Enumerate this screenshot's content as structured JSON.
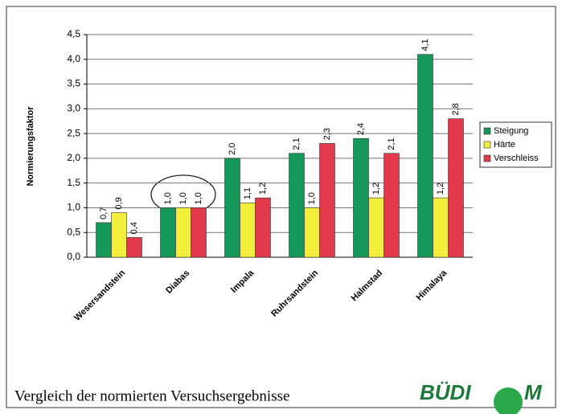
{
  "chart_data": {
    "type": "bar",
    "footer": "Vergleich der normierten Versuchsergebnisse",
    "logo": [
      "BÜDI",
      "M"
    ],
    "y_label": "Normierungsfaktor",
    "categories": [
      "Wesersandstein",
      "Diabas",
      "Impala",
      "Ruhrsandstein",
      "Halmstad",
      "Himalaya"
    ],
    "series": [
      {
        "name": "Steigung",
        "color": "#16985a",
        "values": [
          0.7,
          1.0,
          2.0,
          2.1,
          2.4,
          4.1
        ],
        "value_labels": [
          "0,7",
          "1,0",
          "2,0",
          "2,1",
          "2,4",
          "4,1"
        ]
      },
      {
        "name": "Härte",
        "color": "#f2ee3c",
        "values": [
          0.9,
          1.0,
          1.1,
          1.0,
          1.2,
          1.2
        ],
        "value_labels": [
          "0,9",
          "1,0",
          "1,1",
          "1,0",
          "1,2",
          "1,2"
        ]
      },
      {
        "name": "Verschleiss",
        "color": "#e23a4a",
        "values": [
          0.4,
          1.0,
          1.2,
          2.3,
          2.1,
          2.8
        ],
        "value_labels": [
          "0,4",
          "1,0",
          "1,2",
          "2,3",
          "2,1",
          "2,8"
        ]
      }
    ],
    "ylim": [
      0,
      4.5
    ],
    "yticks": [
      {
        "value": 0,
        "label": "0,0"
      },
      {
        "value": 0.5,
        "label": "0,5"
      },
      {
        "value": 1,
        "label": "1,0"
      },
      {
        "value": 1.5,
        "label": "1,5"
      },
      {
        "value": 2,
        "label": "2,0"
      },
      {
        "value": 2.5,
        "label": "2,5"
      },
      {
        "value": 3,
        "label": "3,0"
      },
      {
        "value": 3.5,
        "label": "3,5"
      },
      {
        "value": 4,
        "label": "4,0"
      },
      {
        "value": 4.5,
        "label": "4,5"
      }
    ],
    "grid": true,
    "legend": "right"
  }
}
